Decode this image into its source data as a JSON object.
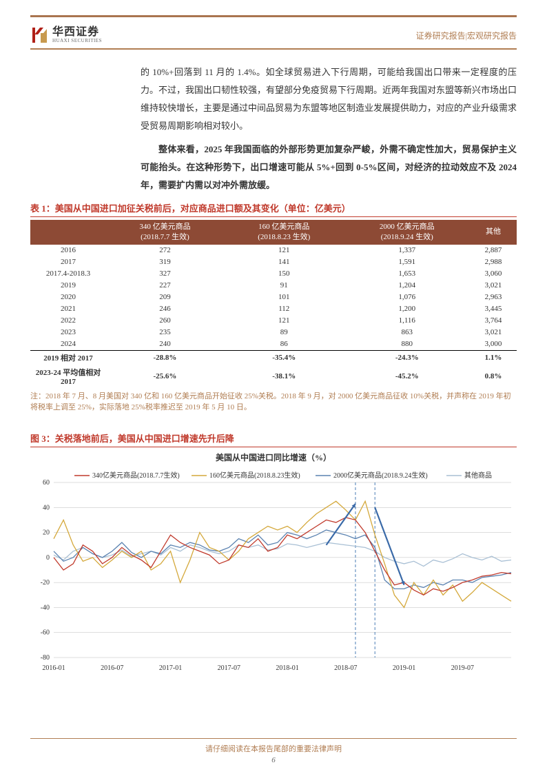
{
  "header": {
    "brand_cn": "华西证券",
    "brand_en": "HUAXI SECURITIES",
    "right": "证券研究报告|宏观研究报告"
  },
  "paragraphs": {
    "p1": "的 10%+回落到 11 月的 1.4%。如全球贸易进入下行周期，可能给我国出口带来一定程度的压力。不过，我国出口韧性较强，有望部分免疫贸易下行周期。近两年我国对东盟等新兴市场出口维持较快增长，主要是通过中间品贸易为东盟等地区制造业发展提供助力，对应的产业升级需求受贸易周期影响相对较小。",
    "p2a": "整体来看，2025 年我国面临的外部形势更加复杂严峻，外需不确定性加大，贸易保护主义可能抬头。在这种形势下，出口增速可能从 5%+回到 0-5%区间，对经济的拉动效应不及 2024 年，需要扩内需以对冲外需放缓。"
  },
  "table": {
    "title": "表 1：美国从中国进口加征关税前后，对应商品进口额及其变化（单位：亿美元）",
    "headers": [
      "",
      "340 亿美元商品\n(2018.7.7 生效)",
      "160 亿美元商品\n(2018.8.23 生效)",
      "2000 亿美元商品\n(2018.9.24 生效)",
      "其他"
    ],
    "rows": [
      [
        "2016",
        "272",
        "121",
        "1,337",
        "2,887"
      ],
      [
        "2017",
        "319",
        "141",
        "1,591",
        "2,988"
      ],
      [
        "2017.4-2018.3",
        "327",
        "150",
        "1,653",
        "3,060"
      ],
      [
        "2019",
        "227",
        "91",
        "1,204",
        "3,021"
      ],
      [
        "2020",
        "209",
        "101",
        "1,076",
        "2,963"
      ],
      [
        "2021",
        "246",
        "112",
        "1,200",
        "3,445"
      ],
      [
        "2022",
        "260",
        "121",
        "1,116",
        "3,764"
      ],
      [
        "2023",
        "235",
        "89",
        "863",
        "3,021"
      ],
      [
        "2024",
        "240",
        "86",
        "880",
        "3,000"
      ]
    ],
    "summary_rows": [
      [
        "2019 相对 2017",
        "-28.8%",
        "-35.4%",
        "-24.3%",
        "1.1%"
      ],
      [
        "2023-24 平均值相对 2017",
        "-25.6%",
        "-38.1%",
        "-45.2%",
        "0.8%"
      ]
    ],
    "note": "注：2018 年 7 月、8 月美国对 340 亿和 160 亿美元商品开始征收 25%关税。2018 年 9 月，对 2000 亿美元商品征收 10%关税，并声称在 2019 年初将税率上调至 25%，实际落地 25%税率推迟至 2019 年 5 月 10 日。"
  },
  "chart": {
    "title": "图 3：关税落地前后，美国从中国进口增速先升后降",
    "inner_title": "美国从中国进口同比增速（%）",
    "type": "line",
    "x_labels": [
      "2016-01",
      "2016-07",
      "2017-01",
      "2017-07",
      "2018-01",
      "2018-07",
      "2019-01",
      "2019-07"
    ],
    "x_count": 48,
    "ylim": [
      -80,
      60
    ],
    "ytick_step": 20,
    "grid_color": "#bbb",
    "background_color": "#ffffff",
    "legend": [
      {
        "label": "340亿美元商品(2018.7.7生效)",
        "color": "#c0392b"
      },
      {
        "label": "160亿美元商品(2018.8.23生效)",
        "color": "#d4a83a"
      },
      {
        "label": "2000亿美元商品(2018.9.24生效)",
        "color": "#5a82b0"
      },
      {
        "label": "其他商品",
        "color": "#a8bfd4"
      }
    ],
    "vlines": [
      31,
      33
    ],
    "vline_color": "#4a7db5",
    "arrow_color": "#3a6aa8",
    "series": {
      "s340": [
        0,
        -10,
        -5,
        10,
        5,
        -5,
        0,
        8,
        2,
        -2,
        -8,
        5,
        18,
        12,
        8,
        5,
        2,
        -5,
        -2,
        10,
        8,
        15,
        5,
        8,
        18,
        15,
        20,
        25,
        30,
        28,
        32,
        30,
        20,
        5,
        -10,
        -22,
        -20,
        -26,
        -30,
        -25,
        -27,
        -24,
        -20,
        -18,
        -15,
        -14,
        -12,
        -13
      ],
      "s160": [
        15,
        30,
        10,
        -3,
        0,
        -8,
        -2,
        5,
        0,
        5,
        -10,
        -5,
        5,
        -20,
        -2,
        20,
        8,
        5,
        -2,
        5,
        15,
        20,
        25,
        22,
        25,
        20,
        28,
        35,
        40,
        45,
        38,
        30,
        45,
        18,
        -5,
        -30,
        -40,
        -20,
        -30,
        -18,
        -30,
        -22,
        -35,
        -28,
        -20,
        -25,
        -30,
        -35
      ],
      "s2000": [
        5,
        -3,
        0,
        8,
        3,
        0,
        5,
        12,
        4,
        0,
        5,
        3,
        10,
        8,
        12,
        10,
        6,
        5,
        8,
        15,
        12,
        18,
        10,
        12,
        20,
        18,
        15,
        18,
        22,
        20,
        18,
        15,
        18,
        8,
        -18,
        -25,
        -25,
        -22,
        -24,
        -20,
        -22,
        -18,
        -18,
        -20,
        -16,
        -15,
        -14,
        -12
      ],
      "other": [
        2,
        -2,
        5,
        8,
        3,
        0,
        2,
        6,
        1,
        3,
        5,
        2,
        8,
        5,
        10,
        8,
        5,
        3,
        5,
        10,
        8,
        10,
        6,
        7,
        11,
        10,
        8,
        10,
        12,
        11,
        10,
        9,
        8,
        5,
        0,
        -3,
        -5,
        -3,
        -7,
        -2,
        -4,
        -1,
        3,
        0,
        -2,
        1,
        -3,
        -2
      ]
    },
    "line_width": 1.3,
    "font_size_axis": 10,
    "font_size_legend": 10
  },
  "footer": {
    "disclaimer": "请仔细阅读在本报告尾部的重要法律声明",
    "page": "6"
  }
}
